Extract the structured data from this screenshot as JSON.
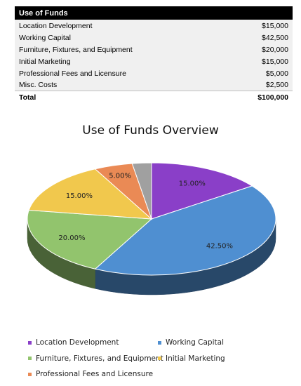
{
  "table": {
    "header": "Use of Funds",
    "rows": [
      {
        "label": "Location Development",
        "value": "$15,000"
      },
      {
        "label": "Working Capital",
        "value": "$42,500"
      },
      {
        "label": "Furniture, Fixtures, and Equipment",
        "value": "$20,000"
      },
      {
        "label": "Initial Marketing",
        "value": "$15,000"
      },
      {
        "label": "Professional Fees and Licensure",
        "value": "$5,000"
      },
      {
        "label": "Misc. Costs",
        "value": "$2,500"
      }
    ],
    "total_label": "Total",
    "total_value": "$100,000"
  },
  "chart_data": {
    "type": "pie",
    "title": "Use of Funds Overview",
    "slices": [
      {
        "name": "Location Development",
        "value": 15.0,
        "label": "15.00%",
        "color": "#8a3fc8"
      },
      {
        "name": "Working Capital",
        "value": 42.5,
        "label": "42.50%",
        "color": "#4f8fd1"
      },
      {
        "name": "Furniture, Fixtures, and Equipment",
        "value": 20.0,
        "label": "20.00%",
        "color": "#92c46d"
      },
      {
        "name": "Initial Marketing",
        "value": 15.0,
        "label": "15.00%",
        "color": "#f1c84d"
      },
      {
        "name": "Professional Fees and Licensure",
        "value": 5.0,
        "label": "5.00%",
        "color": "#ea8a55"
      },
      {
        "name": "Misc. Costs",
        "value": 2.5,
        "label": "",
        "color": "#a0a0a0"
      }
    ],
    "legend": [
      {
        "name": "Location Development",
        "color": "#8a3fc8"
      },
      {
        "name": "Working Capital",
        "color": "#4f8fd1"
      },
      {
        "name": "Furniture, Fixtures, and Equipment",
        "color": "#92c46d"
      },
      {
        "name": "Initial Marketing",
        "color": "#f1c84d"
      },
      {
        "name": "Professional Fees and Licensure",
        "color": "#ea8a55"
      }
    ],
    "legend_position": "bottom",
    "style": "3d-pie"
  }
}
